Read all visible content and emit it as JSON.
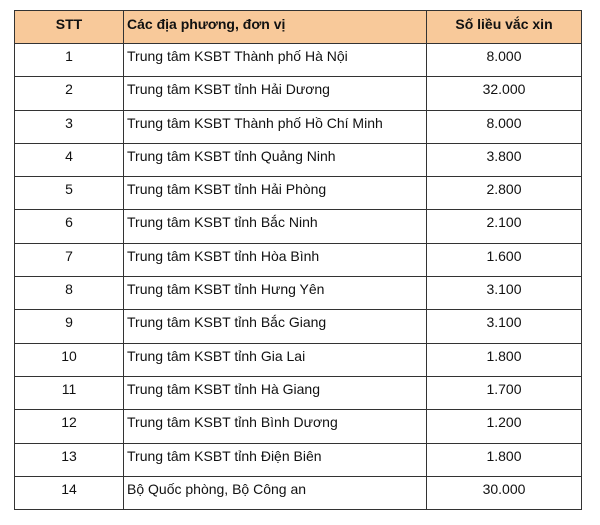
{
  "header": {
    "col_stt": "STT",
    "col_unit": "Các địa phương, đơn vị",
    "col_doses": "Số liều vắc xin",
    "background": "#f8c99a"
  },
  "rows": [
    {
      "stt": "1",
      "unit": "Trung tâm KSBT Thành phố Hà Nội",
      "doses": "8.000"
    },
    {
      "stt": "2",
      "unit": "Trung tâm KSBT tỉnh Hải Dương",
      "doses": "32.000"
    },
    {
      "stt": "3",
      "unit": "Trung tâm KSBT Thành phố Hồ Chí Minh",
      "doses": "8.000"
    },
    {
      "stt": "4",
      "unit": "Trung tâm KSBT tỉnh Quảng Ninh",
      "doses": "3.800"
    },
    {
      "stt": "5",
      "unit": "Trung tâm KSBT tỉnh Hải Phòng",
      "doses": "2.800"
    },
    {
      "stt": "6",
      "unit": "Trung tâm KSBT tỉnh Bắc Ninh",
      "doses": "2.100"
    },
    {
      "stt": "7",
      "unit": "Trung tâm KSBT tỉnh Hòa Bình",
      "doses": "1.600"
    },
    {
      "stt": "8",
      "unit": "Trung tâm KSBT tỉnh Hưng Yên",
      "doses": "3.100"
    },
    {
      "stt": "9",
      "unit": "Trung tâm KSBT tỉnh Bắc Giang",
      "doses": "3.100"
    },
    {
      "stt": "10",
      "unit": "Trung tâm KSBT tỉnh Gia Lai",
      "doses": "1.800"
    },
    {
      "stt": "11",
      "unit": "Trung tâm KSBT tỉnh Hà Giang",
      "doses": "1.700"
    },
    {
      "stt": "12",
      "unit": "Trung tâm KSBT tỉnh Bình Dương",
      "doses": "1.200"
    },
    {
      "stt": "13",
      "unit": "Trung tâm KSBT tỉnh Điện Biên",
      "doses": "1.800"
    },
    {
      "stt": "14",
      "unit": "Bộ Quốc phòng, Bộ Công an",
      "doses": "30.000"
    }
  ]
}
